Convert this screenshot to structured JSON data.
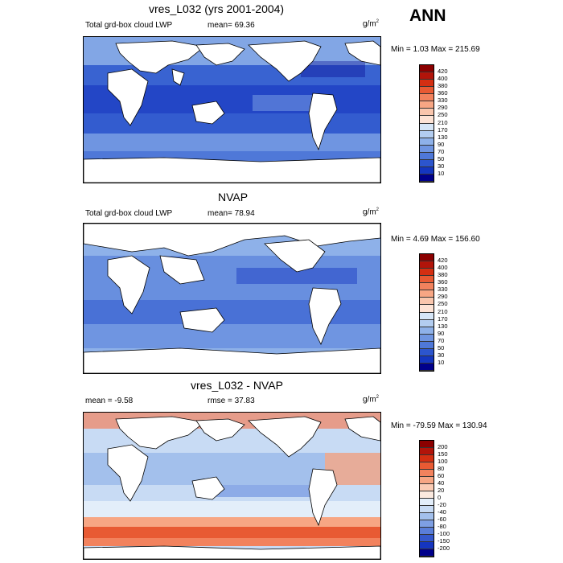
{
  "season_label": "ANN",
  "panels": [
    {
      "title": "vres_L032 (yrs 2001-2004)",
      "left_label": "Total grd-box cloud LWP",
      "mean_text": "mean=  69.36",
      "units_base": "g/m",
      "units_exp": "2",
      "minmax": "Min =   1.03 Max = 215.69",
      "colorbar": {
        "levels": [
          "420",
          "400",
          "380",
          "360",
          "330",
          "290",
          "250",
          "210",
          "170",
          "130",
          "90",
          "70",
          "50",
          "30",
          "10"
        ],
        "colors": [
          "#8b0000",
          "#b2140a",
          "#d42f12",
          "#e85a33",
          "#f2825d",
          "#f7a684",
          "#f9c6ad",
          "#fde3d5",
          "#d6e6f7",
          "#b3cdf0",
          "#8eb1e9",
          "#6f95e1",
          "#4f78d8",
          "#2c55cd",
          "#1436c0",
          "#00008b"
        ]
      }
    },
    {
      "title": "NVAP",
      "left_label": "Total grd-box cloud LWP",
      "mean_text": "mean=  78.94",
      "units_base": "g/m",
      "units_exp": "2",
      "minmax": "Min =   4.69 Max = 156.60",
      "colorbar": {
        "levels": [
          "420",
          "400",
          "380",
          "360",
          "330",
          "290",
          "250",
          "210",
          "170",
          "130",
          "90",
          "70",
          "50",
          "30",
          "10"
        ],
        "colors": [
          "#8b0000",
          "#b2140a",
          "#d42f12",
          "#e85a33",
          "#f2825d",
          "#f7a684",
          "#f9c6ad",
          "#fde3d5",
          "#d6e6f7",
          "#b3cdf0",
          "#8eb1e9",
          "#6f95e1",
          "#4f78d8",
          "#2c55cd",
          "#1436c0",
          "#00008b"
        ]
      }
    },
    {
      "title": "vres_L032 - NVAP",
      "left_label": "mean =  -9.58",
      "mean_text": "rmse =  37.83",
      "units_base": "g/m",
      "units_exp": "2",
      "minmax": "Min = -79.59 Max = 130.94",
      "colorbar": {
        "levels": [
          "200",
          "150",
          "100",
          "80",
          "60",
          "40",
          "20",
          "0",
          "-20",
          "-40",
          "-60",
          "-80",
          "-100",
          "-150",
          "-200"
        ],
        "colors": [
          "#8b0000",
          "#b2140a",
          "#d42f12",
          "#e85a33",
          "#f2825d",
          "#f7a684",
          "#fbccb5",
          "#fbe9df",
          "#e3eefa",
          "#c8dbf4",
          "#a3c0ec",
          "#7e9fe3",
          "#5a7ed9",
          "#3558cc",
          "#1535bf",
          "#00008b"
        ]
      }
    }
  ]
}
